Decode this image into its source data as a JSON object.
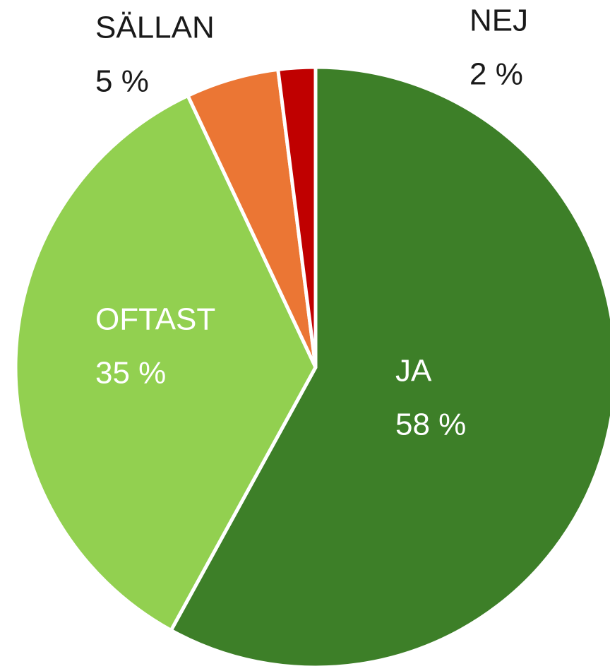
{
  "chart_data": {
    "type": "pie",
    "categories": [
      "JA",
      "OFTAST",
      "SÄLLAN",
      "NEJ"
    ],
    "values": [
      58,
      35,
      5,
      2
    ],
    "value_labels": [
      "58 %",
      "35 %",
      "5 %",
      "2 %"
    ],
    "colors": [
      "#3d7f28",
      "#92d050",
      "#eb7634",
      "#c00000"
    ]
  }
}
